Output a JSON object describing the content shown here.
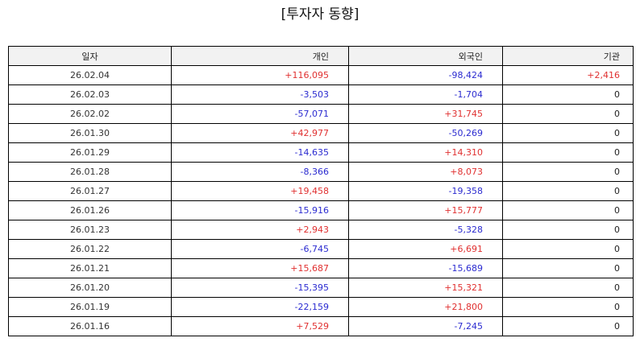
{
  "title": "[투자자 동향]",
  "colors": {
    "positive": "#e03030",
    "negative": "#2b2bd0",
    "header_bg": "#f2f2f2"
  },
  "columns": [
    "일자",
    "개인",
    "외국인",
    "기관"
  ],
  "rows": [
    {
      "date": "26.02.04",
      "individual": "+116,095",
      "foreign": "-98,424",
      "institution": "+2,416"
    },
    {
      "date": "26.02.03",
      "individual": "-3,503",
      "foreign": "-1,704",
      "institution": "0"
    },
    {
      "date": "26.02.02",
      "individual": "-57,071",
      "foreign": "+31,745",
      "institution": "0"
    },
    {
      "date": "26.01.30",
      "individual": "+42,977",
      "foreign": "-50,269",
      "institution": "0"
    },
    {
      "date": "26.01.29",
      "individual": "-14,635",
      "foreign": "+14,310",
      "institution": "0"
    },
    {
      "date": "26.01.28",
      "individual": "-8,366",
      "foreign": "+8,073",
      "institution": "0"
    },
    {
      "date": "26.01.27",
      "individual": "+19,458",
      "foreign": "-19,358",
      "institution": "0"
    },
    {
      "date": "26.01.26",
      "individual": "-15,916",
      "foreign": "+15,777",
      "institution": "0"
    },
    {
      "date": "26.01.23",
      "individual": "+2,943",
      "foreign": "-5,328",
      "institution": "0"
    },
    {
      "date": "26.01.22",
      "individual": "-6,745",
      "foreign": "+6,691",
      "institution": "0"
    },
    {
      "date": "26.01.21",
      "individual": "+15,687",
      "foreign": "-15,689",
      "institution": "0"
    },
    {
      "date": "26.01.20",
      "individual": "-15,395",
      "foreign": "+15,321",
      "institution": "0"
    },
    {
      "date": "26.01.19",
      "individual": "-22,159",
      "foreign": "+21,800",
      "institution": "0"
    },
    {
      "date": "26.01.16",
      "individual": "+7,529",
      "foreign": "-7,245",
      "institution": "0"
    }
  ]
}
